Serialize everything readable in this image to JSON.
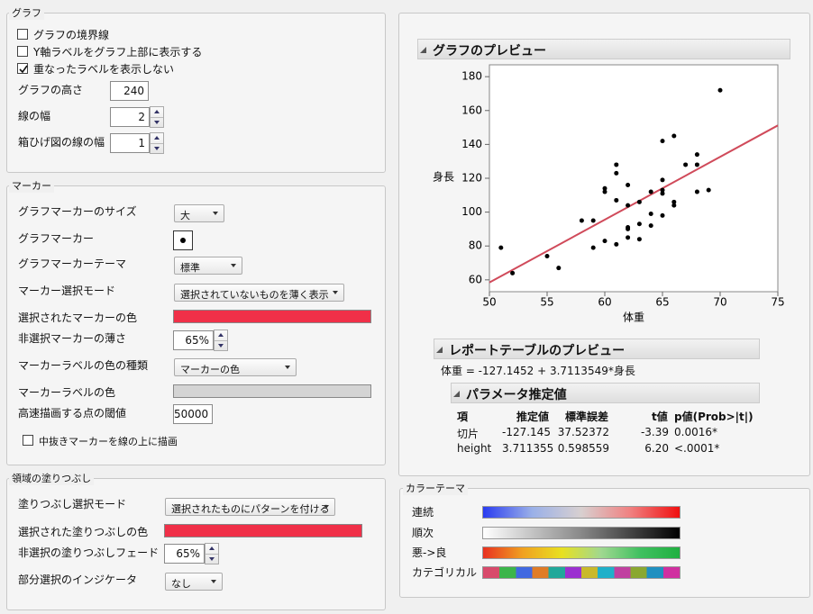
{
  "graph_panel": {
    "title": "グラフ",
    "checkboxes": [
      {
        "label": "グラフの境界線",
        "checked": false
      },
      {
        "label": "Y軸ラベルをグラフ上部に表示する",
        "checked": false
      },
      {
        "label": "重なったラベルを表示しない",
        "checked": true
      }
    ],
    "graph_height": {
      "label": "グラフの高さ",
      "value": "240"
    },
    "line_width": {
      "label": "線の幅",
      "value": "2"
    },
    "box_line_width": {
      "label": "箱ひげ図の線の幅",
      "value": "1"
    }
  },
  "marker_panel": {
    "title": "マーカー",
    "size": {
      "label": "グラフマーカーのサイズ",
      "value": "大"
    },
    "marker": {
      "label": "グラフマーカー"
    },
    "theme": {
      "label": "グラフマーカーテーマ",
      "value": "標準"
    },
    "select_mode": {
      "label": "マーカー選択モード",
      "value": "選択されていないものを薄く表示"
    },
    "selected_color": {
      "label": "選択されたマーカーの色",
      "color": "#f03048"
    },
    "unselected_fade": {
      "label": "非選択マーカーの薄さ",
      "value": "65%"
    },
    "label_color_type": {
      "label": "マーカーラベルの色の種類",
      "value": "マーカーの色"
    },
    "label_color": {
      "label": "マーカーラベルの色",
      "color": "#d4d4d4"
    },
    "fast_threshold": {
      "label": "高速描画する点の閾値",
      "value": "50000"
    },
    "hollow": {
      "label": "中抜きマーカーを線の上に描画",
      "checked": false
    }
  },
  "fill_panel": {
    "title": "領域の塗りつぶし",
    "select_mode": {
      "label": "塗りつぶし選択モード",
      "value": "選択されたものにパターンを付ける"
    },
    "selected_color": {
      "label": "選択された塗りつぶしの色",
      "color": "#f03048"
    },
    "unselected_fade": {
      "label": "非選択の塗りつぶしフェード",
      "value": "65%"
    },
    "partial_indicator": {
      "label": "部分選択のインジケータ",
      "value": "なし"
    }
  },
  "preview": {
    "header": "グラフのプレビュー",
    "chart_data": {
      "type": "scatter",
      "xlabel": "体重",
      "ylabel": "身長",
      "x": [
        51,
        52,
        55,
        56,
        58,
        59,
        59,
        60,
        60,
        60,
        61,
        61,
        61,
        61,
        62,
        62,
        62,
        62,
        62,
        63,
        63,
        63,
        64,
        64,
        64,
        65,
        65,
        65,
        65,
        65,
        66,
        66,
        66,
        67,
        68,
        68,
        68,
        69,
        70
      ],
      "y": [
        79,
        64,
        74,
        67,
        95,
        95,
        79,
        114,
        112,
        83,
        128,
        123,
        107,
        81,
        116,
        104,
        91,
        90,
        85,
        106,
        93,
        84,
        112,
        99,
        92,
        142,
        119,
        113,
        111,
        98,
        145,
        106,
        104,
        128,
        134,
        128,
        112,
        113,
        172
      ],
      "color": "#000000",
      "xlim": [
        50,
        75
      ],
      "ylim": [
        53,
        187
      ],
      "xticks": [
        50,
        55,
        60,
        65,
        70,
        75
      ],
      "yticks": [
        60,
        80,
        100,
        120,
        140,
        160,
        180
      ],
      "grid": false,
      "fit_line": {
        "intercept": -127.1452,
        "slope": 3.7113549,
        "color": "#d04a5a"
      }
    },
    "report_header": "レポートテーブルのプレビュー",
    "equation": "体重 = -127.1452 + 3.7113549*身長",
    "param_header": "パラメータ推定値",
    "table": {
      "columns": [
        "項",
        "推定値",
        "標準誤差",
        "t値",
        "p値(Prob>|t|)"
      ],
      "rows": [
        [
          "切片",
          "-127.145",
          "37.52372",
          "-3.39",
          "0.0016*"
        ],
        [
          "height",
          "3.711355",
          "0.598559",
          "6.20",
          "<.0001*"
        ]
      ]
    }
  },
  "color_theme": {
    "title": "カラーテーマ",
    "rows": [
      "連続",
      "順次",
      "悪->良",
      "カテゴリカル"
    ]
  }
}
